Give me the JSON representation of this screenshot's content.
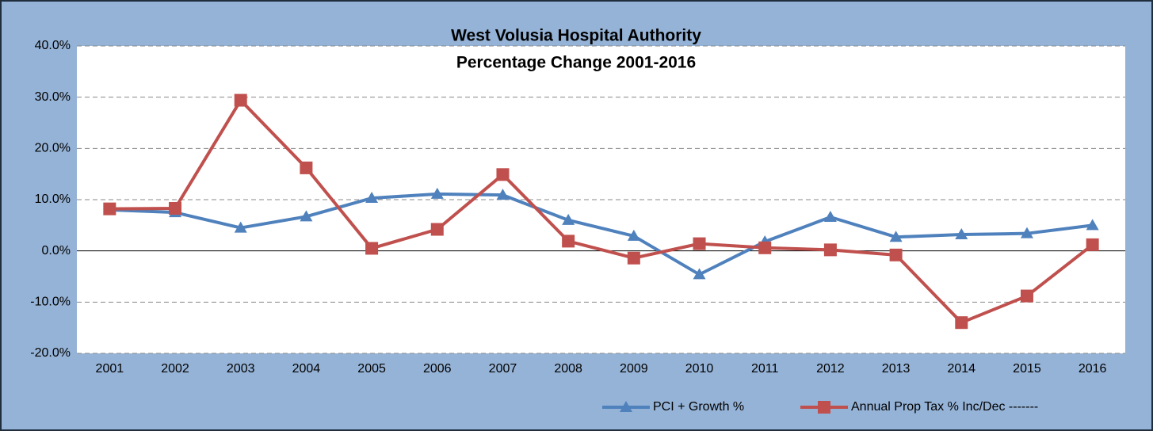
{
  "chart_data": {
    "type": "line",
    "title": "West Volusia Hospital Authority",
    "subtitle": "Percentage Change 2001-2016",
    "categories": [
      "2001",
      "2002",
      "2003",
      "2004",
      "2005",
      "2006",
      "2007",
      "2008",
      "2009",
      "2010",
      "2011",
      "2012",
      "2013",
      "2014",
      "2015",
      "2016"
    ],
    "series": [
      {
        "name": "PCI + Growth %",
        "color": "#4f81bd",
        "marker": "triangle",
        "values": [
          8.0,
          7.5,
          4.5,
          6.7,
          10.3,
          11.1,
          10.9,
          6.0,
          2.9,
          -4.6,
          1.8,
          6.6,
          2.7,
          3.2,
          3.4,
          5.0
        ]
      },
      {
        "name": "Annual Prop Tax % Inc/Dec -------",
        "color": "#c0504d",
        "marker": "square",
        "values": [
          8.2,
          8.3,
          29.4,
          16.2,
          0.5,
          4.2,
          14.9,
          1.9,
          -1.4,
          1.4,
          0.6,
          0.2,
          -0.8,
          -14.0,
          -8.8,
          1.2
        ]
      }
    ],
    "ylim": [
      -20,
      40
    ],
    "yticks": [
      {
        "value": -20,
        "label": "-20.0%"
      },
      {
        "value": -10,
        "label": "-10.0%"
      },
      {
        "value": 0,
        "label": "0.0%"
      },
      {
        "value": 10,
        "label": "10.0%"
      },
      {
        "value": 20,
        "label": "20.0%"
      },
      {
        "value": 30,
        "label": "30.0%"
      },
      {
        "value": 40,
        "label": "40.0%"
      }
    ],
    "grid": true,
    "legend": "bottom"
  }
}
